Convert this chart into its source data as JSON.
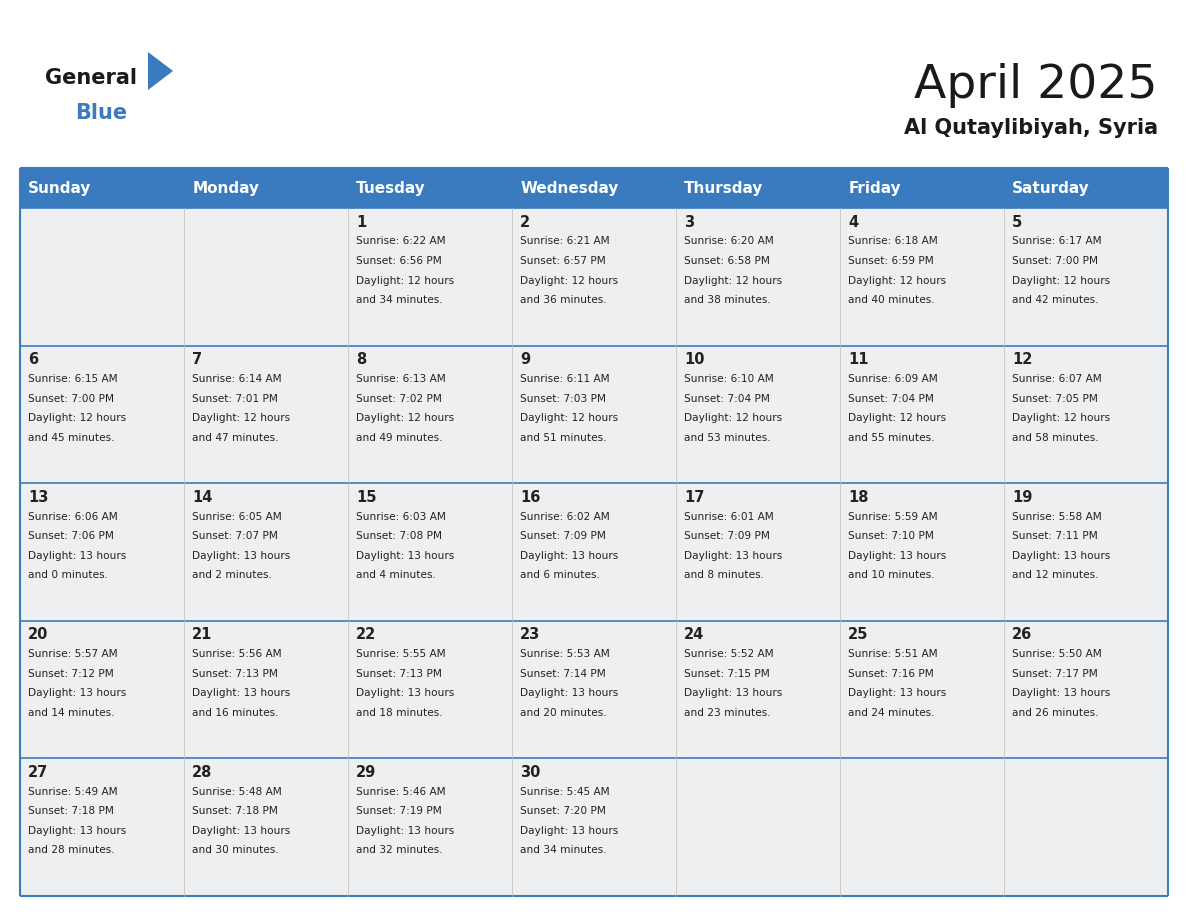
{
  "title": "April 2025",
  "subtitle": "Al Qutaylibiyah, Syria",
  "header_color": "#3a7bbf",
  "header_text_color": "#ffffff",
  "cell_bg": "#eeeff1",
  "border_color": "#3a7bbf",
  "text_color": "#222222",
  "days_of_week": [
    "Sunday",
    "Monday",
    "Tuesday",
    "Wednesday",
    "Thursday",
    "Friday",
    "Saturday"
  ],
  "calendar_data": [
    [
      {
        "day": "",
        "info": ""
      },
      {
        "day": "",
        "info": ""
      },
      {
        "day": "1",
        "info": "Sunrise: 6:22 AM\nSunset: 6:56 PM\nDaylight: 12 hours\nand 34 minutes."
      },
      {
        "day": "2",
        "info": "Sunrise: 6:21 AM\nSunset: 6:57 PM\nDaylight: 12 hours\nand 36 minutes."
      },
      {
        "day": "3",
        "info": "Sunrise: 6:20 AM\nSunset: 6:58 PM\nDaylight: 12 hours\nand 38 minutes."
      },
      {
        "day": "4",
        "info": "Sunrise: 6:18 AM\nSunset: 6:59 PM\nDaylight: 12 hours\nand 40 minutes."
      },
      {
        "day": "5",
        "info": "Sunrise: 6:17 AM\nSunset: 7:00 PM\nDaylight: 12 hours\nand 42 minutes."
      }
    ],
    [
      {
        "day": "6",
        "info": "Sunrise: 6:15 AM\nSunset: 7:00 PM\nDaylight: 12 hours\nand 45 minutes."
      },
      {
        "day": "7",
        "info": "Sunrise: 6:14 AM\nSunset: 7:01 PM\nDaylight: 12 hours\nand 47 minutes."
      },
      {
        "day": "8",
        "info": "Sunrise: 6:13 AM\nSunset: 7:02 PM\nDaylight: 12 hours\nand 49 minutes."
      },
      {
        "day": "9",
        "info": "Sunrise: 6:11 AM\nSunset: 7:03 PM\nDaylight: 12 hours\nand 51 minutes."
      },
      {
        "day": "10",
        "info": "Sunrise: 6:10 AM\nSunset: 7:04 PM\nDaylight: 12 hours\nand 53 minutes."
      },
      {
        "day": "11",
        "info": "Sunrise: 6:09 AM\nSunset: 7:04 PM\nDaylight: 12 hours\nand 55 minutes."
      },
      {
        "day": "12",
        "info": "Sunrise: 6:07 AM\nSunset: 7:05 PM\nDaylight: 12 hours\nand 58 minutes."
      }
    ],
    [
      {
        "day": "13",
        "info": "Sunrise: 6:06 AM\nSunset: 7:06 PM\nDaylight: 13 hours\nand 0 minutes."
      },
      {
        "day": "14",
        "info": "Sunrise: 6:05 AM\nSunset: 7:07 PM\nDaylight: 13 hours\nand 2 minutes."
      },
      {
        "day": "15",
        "info": "Sunrise: 6:03 AM\nSunset: 7:08 PM\nDaylight: 13 hours\nand 4 minutes."
      },
      {
        "day": "16",
        "info": "Sunrise: 6:02 AM\nSunset: 7:09 PM\nDaylight: 13 hours\nand 6 minutes."
      },
      {
        "day": "17",
        "info": "Sunrise: 6:01 AM\nSunset: 7:09 PM\nDaylight: 13 hours\nand 8 minutes."
      },
      {
        "day": "18",
        "info": "Sunrise: 5:59 AM\nSunset: 7:10 PM\nDaylight: 13 hours\nand 10 minutes."
      },
      {
        "day": "19",
        "info": "Sunrise: 5:58 AM\nSunset: 7:11 PM\nDaylight: 13 hours\nand 12 minutes."
      }
    ],
    [
      {
        "day": "20",
        "info": "Sunrise: 5:57 AM\nSunset: 7:12 PM\nDaylight: 13 hours\nand 14 minutes."
      },
      {
        "day": "21",
        "info": "Sunrise: 5:56 AM\nSunset: 7:13 PM\nDaylight: 13 hours\nand 16 minutes."
      },
      {
        "day": "22",
        "info": "Sunrise: 5:55 AM\nSunset: 7:13 PM\nDaylight: 13 hours\nand 18 minutes."
      },
      {
        "day": "23",
        "info": "Sunrise: 5:53 AM\nSunset: 7:14 PM\nDaylight: 13 hours\nand 20 minutes."
      },
      {
        "day": "24",
        "info": "Sunrise: 5:52 AM\nSunset: 7:15 PM\nDaylight: 13 hours\nand 23 minutes."
      },
      {
        "day": "25",
        "info": "Sunrise: 5:51 AM\nSunset: 7:16 PM\nDaylight: 13 hours\nand 24 minutes."
      },
      {
        "day": "26",
        "info": "Sunrise: 5:50 AM\nSunset: 7:17 PM\nDaylight: 13 hours\nand 26 minutes."
      }
    ],
    [
      {
        "day": "27",
        "info": "Sunrise: 5:49 AM\nSunset: 7:18 PM\nDaylight: 13 hours\nand 28 minutes."
      },
      {
        "day": "28",
        "info": "Sunrise: 5:48 AM\nSunset: 7:18 PM\nDaylight: 13 hours\nand 30 minutes."
      },
      {
        "day": "29",
        "info": "Sunrise: 5:46 AM\nSunset: 7:19 PM\nDaylight: 13 hours\nand 32 minutes."
      },
      {
        "day": "30",
        "info": "Sunrise: 5:45 AM\nSunset: 7:20 PM\nDaylight: 13 hours\nand 34 minutes."
      },
      {
        "day": "",
        "info": ""
      },
      {
        "day": "",
        "info": ""
      },
      {
        "day": "",
        "info": ""
      }
    ]
  ]
}
